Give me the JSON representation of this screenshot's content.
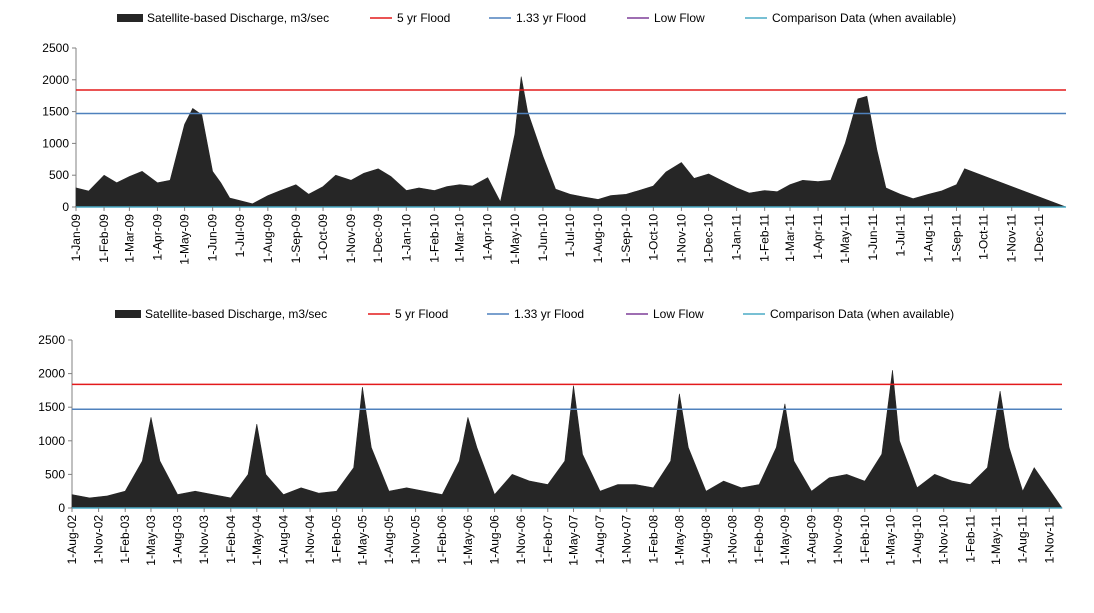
{
  "legend": {
    "discharge": "Satellite-based Discharge, m3/sec",
    "flood5": "5 yr Flood",
    "flood133": "1.33 yr Flood",
    "lowflow": "Low Flow",
    "comparison": "Comparison Data (when available)"
  },
  "colors": {
    "discharge": "#262626",
    "flood5": "#e31a1c",
    "flood133": "#4f81bd",
    "lowflow": "#7f3f98",
    "comparison": "#4bacc6",
    "axis": "#808080"
  },
  "chart_data": [
    {
      "type": "area",
      "legend_position": "top",
      "grid": false,
      "ylim": [
        0,
        2500
      ],
      "yticks": [
        "0",
        "500",
        "1000",
        "1500",
        "2000",
        "2500"
      ],
      "flood5": 1840,
      "flood133": 1470,
      "xlim": [
        "2009-01-01",
        "2011-12-31"
      ],
      "x_tick_labels": [
        "1-Jan-09",
        "1-Feb-09",
        "1-Mar-09",
        "1-Apr-09",
        "1-May-09",
        "1-Jun-09",
        "1-Jul-09",
        "1-Aug-09",
        "1-Sep-09",
        "1-Oct-09",
        "1-Nov-09",
        "1-Dec-09",
        "1-Jan-10",
        "1-Feb-10",
        "1-Mar-10",
        "1-Apr-10",
        "1-May-10",
        "1-Jun-10",
        "1-Jul-10",
        "1-Aug-10",
        "1-Sep-10",
        "1-Oct-10",
        "1-Nov-10",
        "1-Dec-10",
        "1-Jan-11",
        "1-Feb-11",
        "1-Mar-11",
        "1-Apr-11",
        "1-May-11",
        "1-Jun-11",
        "1-Jul-11",
        "1-Aug-11",
        "1-Sep-11",
        "1-Oct-11",
        "1-Nov-11",
        "1-Dec-11"
      ],
      "series": [
        {
          "name": "Satellite-based Discharge, m3/sec",
          "x": [
            "2009-01-01",
            "2009-01-15",
            "2009-02-01",
            "2009-02-15",
            "2009-03-01",
            "2009-03-15",
            "2009-04-01",
            "2009-04-15",
            "2009-05-01",
            "2009-05-10",
            "2009-05-20",
            "2009-06-01",
            "2009-06-10",
            "2009-06-20",
            "2009-07-01",
            "2009-07-15",
            "2009-08-01",
            "2009-08-15",
            "2009-09-01",
            "2009-09-15",
            "2009-10-01",
            "2009-10-15",
            "2009-11-01",
            "2009-11-15",
            "2009-12-01",
            "2009-12-15",
            "2010-01-01",
            "2010-01-15",
            "2010-02-01",
            "2010-02-15",
            "2010-03-01",
            "2010-03-15",
            "2010-04-01",
            "2010-04-15",
            "2010-05-01",
            "2010-05-08",
            "2010-05-15",
            "2010-06-01",
            "2010-06-15",
            "2010-07-01",
            "2010-07-15",
            "2010-08-01",
            "2010-08-15",
            "2010-09-01",
            "2010-09-15",
            "2010-10-01",
            "2010-10-15",
            "2010-11-01",
            "2010-11-15",
            "2010-12-01",
            "2010-12-15",
            "2011-01-01",
            "2011-01-15",
            "2011-02-01",
            "2011-02-15",
            "2011-03-01",
            "2011-03-15",
            "2011-04-01",
            "2011-04-15",
            "2011-05-01",
            "2011-05-15",
            "2011-05-25",
            "2011-06-05",
            "2011-06-15",
            "2011-07-01",
            "2011-07-15",
            "2011-08-01",
            "2011-08-15",
            "2011-09-01",
            "2011-09-10",
            "2011-12-31"
          ],
          "values": [
            300,
            250,
            500,
            380,
            480,
            560,
            380,
            420,
            1300,
            1550,
            1450,
            560,
            380,
            140,
            100,
            50,
            180,
            260,
            350,
            200,
            320,
            500,
            420,
            530,
            600,
            480,
            260,
            300,
            260,
            320,
            350,
            330,
            460,
            80,
            1150,
            2050,
            1500,
            800,
            280,
            200,
            160,
            120,
            180,
            200,
            260,
            330,
            550,
            700,
            450,
            520,
            420,
            300,
            220,
            260,
            240,
            350,
            420,
            400,
            420,
            1000,
            1700,
            1740,
            900,
            300,
            200,
            130,
            200,
            250,
            350,
            600,
            0
          ]
        }
      ]
    },
    {
      "type": "area",
      "legend_position": "top",
      "grid": false,
      "ylim": [
        0,
        2500
      ],
      "yticks": [
        "0",
        "500",
        "1000",
        "1500",
        "2000",
        "2500"
      ],
      "flood5": 1840,
      "flood133": 1470,
      "xlim": [
        "2002-08-01",
        "2011-12-15"
      ],
      "x_tick_labels": [
        "1-Aug-02",
        "1-Nov-02",
        "1-Feb-03",
        "1-May-03",
        "1-Aug-03",
        "1-Nov-03",
        "1-Feb-04",
        "1-May-04",
        "1-Aug-04",
        "1-Nov-04",
        "1-Feb-05",
        "1-May-05",
        "1-Aug-05",
        "1-Nov-05",
        "1-Feb-06",
        "1-May-06",
        "1-Aug-06",
        "1-Nov-06",
        "1-Feb-07",
        "1-May-07",
        "1-Aug-07",
        "1-Nov-07",
        "1-Feb-08",
        "1-May-08",
        "1-Aug-08",
        "1-Nov-08",
        "1-Feb-09",
        "1-May-09",
        "1-Aug-09",
        "1-Nov-09",
        "1-Feb-10",
        "1-May-10",
        "1-Aug-10",
        "1-Nov-10",
        "1-Feb-11",
        "1-May-11",
        "1-Aug-11",
        "1-Nov-11"
      ],
      "series": [
        {
          "name": "Satellite-based Discharge, m3/sec",
          "x": [
            "2002-08-01",
            "2002-10-01",
            "2002-12-01",
            "2003-02-01",
            "2003-04-01",
            "2003-05-01",
            "2003-06-01",
            "2003-08-01",
            "2003-10-01",
            "2003-12-01",
            "2004-02-01",
            "2004-04-01",
            "2004-05-01",
            "2004-06-01",
            "2004-08-01",
            "2004-10-01",
            "2004-12-01",
            "2005-02-01",
            "2005-04-01",
            "2005-05-01",
            "2005-06-01",
            "2005-08-01",
            "2005-10-01",
            "2005-12-01",
            "2006-02-01",
            "2006-04-01",
            "2006-05-01",
            "2006-06-01",
            "2006-08-01",
            "2006-10-01",
            "2006-12-01",
            "2007-02-01",
            "2007-04-01",
            "2007-05-01",
            "2007-06-01",
            "2007-08-01",
            "2007-10-01",
            "2007-12-01",
            "2008-02-01",
            "2008-04-01",
            "2008-05-01",
            "2008-06-01",
            "2008-08-01",
            "2008-10-01",
            "2008-12-01",
            "2009-02-01",
            "2009-04-01",
            "2009-05-01",
            "2009-06-01",
            "2009-08-01",
            "2009-10-01",
            "2009-12-01",
            "2010-02-01",
            "2010-04-01",
            "2010-05-08",
            "2010-06-01",
            "2010-08-01",
            "2010-10-01",
            "2010-12-01",
            "2011-02-01",
            "2011-04-01",
            "2011-05-15",
            "2011-06-15",
            "2011-08-01",
            "2011-09-10",
            "2011-12-15"
          ],
          "values": [
            200,
            150,
            180,
            250,
            700,
            1350,
            700,
            200,
            250,
            200,
            150,
            500,
            1250,
            500,
            200,
            300,
            220,
            250,
            600,
            1800,
            900,
            250,
            300,
            250,
            200,
            700,
            1350,
            900,
            200,
            500,
            400,
            350,
            700,
            1820,
            800,
            250,
            350,
            350,
            300,
            700,
            1700,
            900,
            250,
            400,
            300,
            350,
            900,
            1550,
            700,
            250,
            450,
            500,
            400,
            800,
            2050,
            1000,
            300,
            500,
            400,
            350,
            600,
            1740,
            900,
            250,
            600,
            0
          ]
        }
      ]
    }
  ]
}
